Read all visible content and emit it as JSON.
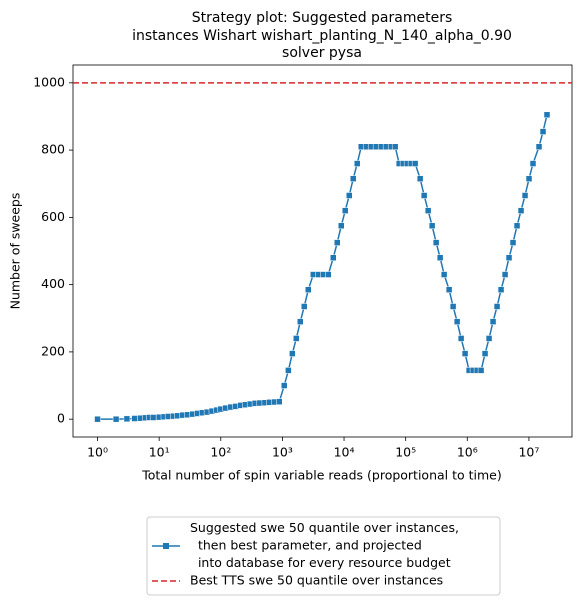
{
  "chart_data": {
    "type": "line",
    "title": [
      "Strategy plot: Suggested parameters",
      "instances Wishart wishart_planting_N_140_alpha_0.90",
      "solver pysa"
    ],
    "x_label": "Total number of spin variable reads (proportional to time)",
    "y_label": "Number of sweeps",
    "x_scale": "log",
    "xlim": [
      0.4,
      50000000
    ],
    "ylim": [
      -53,
      1053
    ],
    "xticks": [
      {
        "value": 1,
        "label": "10⁰"
      },
      {
        "value": 10,
        "label": "10¹"
      },
      {
        "value": 100,
        "label": "10²"
      },
      {
        "value": 1000,
        "label": "10³"
      },
      {
        "value": 10000,
        "label": "10⁴"
      },
      {
        "value": 100000,
        "label": "10⁵"
      },
      {
        "value": 1000000,
        "label": "10⁶"
      },
      {
        "value": 10000000,
        "label": "10⁷"
      }
    ],
    "yticks": [
      0,
      200,
      400,
      600,
      800,
      1000
    ],
    "legend": "bottom-outside",
    "series": [
      {
        "name": "Suggested swe 50 quantile over instances,\n  then best parameter, and projected\n  into database for every resource budget",
        "color": "#1f77b4",
        "marker": "square",
        "x": [
          1,
          2,
          3,
          4,
          5,
          6,
          7,
          8,
          10,
          12,
          14,
          17,
          20,
          24,
          29,
          35,
          42,
          50,
          60,
          72,
          86,
          100,
          120,
          145,
          175,
          210,
          250,
          300,
          360,
          430,
          520,
          620,
          750,
          890,
          1070,
          1250,
          1450,
          1680,
          1950,
          2260,
          2630,
          3170,
          3820,
          4600,
          5550,
          6690,
          7760,
          9010,
          10450,
          12140,
          14090,
          16360,
          19000,
          22900,
          27600,
          33200,
          40100,
          48300,
          58200,
          67600,
          78400,
          91000,
          105700,
          122700,
          142500,
          171800,
          199500,
          231600,
          268900,
          312200,
          362500,
          420900,
          507000,
          588800,
          683900,
          794000,
          921000,
          1069000,
          1242000,
          1442000,
          1674000,
          1942000,
          2255000,
          2618000,
          3041000,
          3532000,
          4102000,
          4756000,
          5521000,
          6412000,
          7447000,
          8650000,
          10040000,
          11650000,
          14580000,
          16940000,
          19650000
        ],
        "values": [
          0,
          0,
          1,
          2,
          3,
          4,
          5,
          5,
          6,
          7,
          8,
          9,
          10,
          12,
          13,
          15,
          17,
          19,
          21,
          24,
          27,
          30,
          33,
          36,
          38,
          41,
          43,
          45,
          47,
          48,
          49,
          50,
          51,
          52,
          100,
          145,
          195,
          240,
          290,
          335,
          385,
          430,
          430,
          430,
          430,
          480,
          525,
          575,
          620,
          665,
          715,
          760,
          810,
          810,
          810,
          810,
          810,
          810,
          810,
          810,
          760,
          760,
          760,
          760,
          760,
          715,
          665,
          620,
          575,
          525,
          480,
          430,
          385,
          335,
          290,
          240,
          195,
          145,
          145,
          145,
          145,
          195,
          240,
          290,
          335,
          385,
          430,
          480,
          525,
          575,
          620,
          665,
          715,
          760,
          810,
          855,
          905
        ]
      }
    ],
    "reference_lines": [
      {
        "name": "Best TTS swe 50 quantile over instances",
        "color": "#d62728",
        "style": "dashed",
        "value": 1000
      }
    ]
  }
}
